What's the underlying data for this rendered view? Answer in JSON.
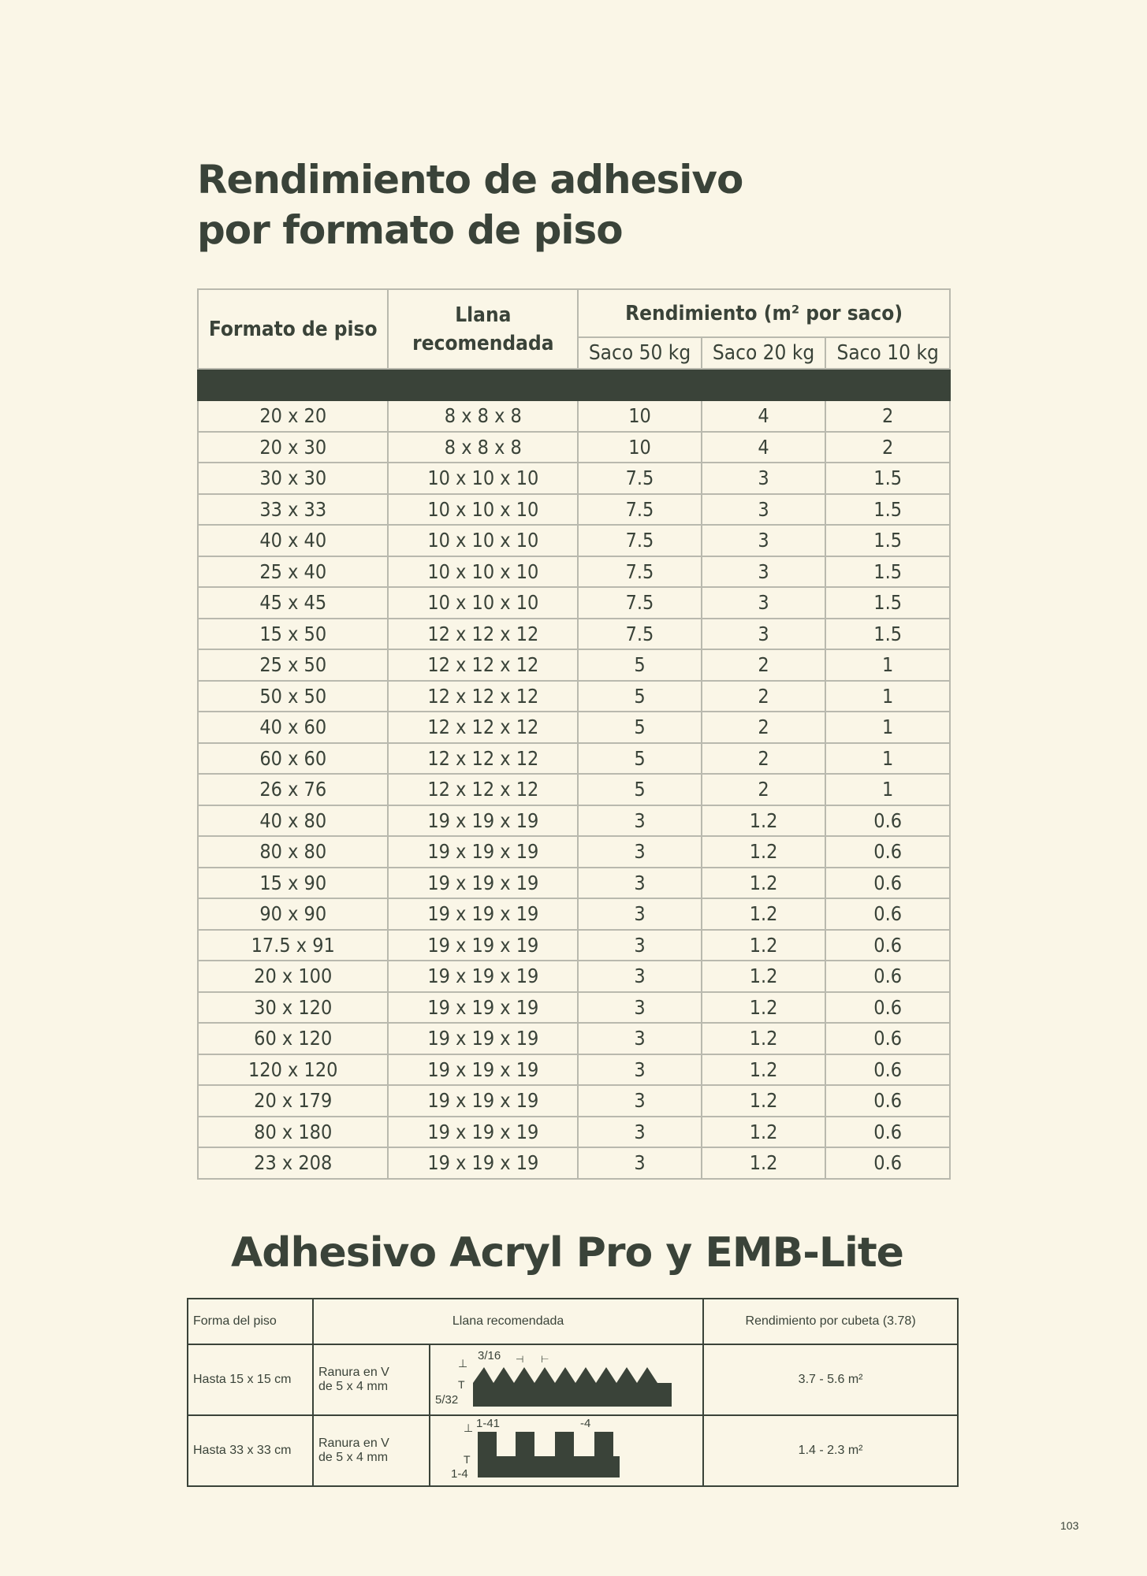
{
  "title_line1": "Rendimiento de adhesivo",
  "title_line2": "por formato de piso",
  "table1": {
    "headers": {
      "formato": "Formato de piso",
      "llana": "Llana recomendada",
      "rendimiento": "Rendimiento (m² por saco)",
      "saco50": "Saco 50 kg",
      "saco20": "Saco 20 kg",
      "saco10": "Saco 10 kg"
    },
    "rows": [
      [
        "20 x 20",
        "8 x 8 x 8",
        "10",
        "4",
        "2"
      ],
      [
        "20 x 30",
        "8 x 8 x 8",
        "10",
        "4",
        "2"
      ],
      [
        "30 x 30",
        "10 x 10 x 10",
        "7.5",
        "3",
        "1.5"
      ],
      [
        "33 x 33",
        "10 x 10 x 10",
        "7.5",
        "3",
        "1.5"
      ],
      [
        "40 x 40",
        "10 x 10 x 10",
        "7.5",
        "3",
        "1.5"
      ],
      [
        "25 x 40",
        "10 x 10 x 10",
        "7.5",
        "3",
        "1.5"
      ],
      [
        "45 x 45",
        "10 x 10 x 10",
        "7.5",
        "3",
        "1.5"
      ],
      [
        "15 x 50",
        "12 x 12 x 12",
        "7.5",
        "3",
        "1.5"
      ],
      [
        "25 x 50",
        "12 x 12 x 12",
        "5",
        "2",
        "1"
      ],
      [
        "50 x 50",
        "12 x 12 x 12",
        "5",
        "2",
        "1"
      ],
      [
        "40 x 60",
        "12 x 12 x 12",
        "5",
        "2",
        "1"
      ],
      [
        "60 x 60",
        "12 x 12 x 12",
        "5",
        "2",
        "1"
      ],
      [
        "26 x 76",
        "12 x 12 x 12",
        "5",
        "2",
        "1"
      ],
      [
        "40 x 80",
        "19 x 19 x 19",
        "3",
        "1.2",
        "0.6"
      ],
      [
        "80 x 80",
        "19 x 19 x 19",
        "3",
        "1.2",
        "0.6"
      ],
      [
        "15 x 90",
        "19 x 19 x 19",
        "3",
        "1.2",
        "0.6"
      ],
      [
        "90 x 90",
        "19 x 19 x 19",
        "3",
        "1.2",
        "0.6"
      ],
      [
        "17.5 x 91",
        "19 x 19 x 19",
        "3",
        "1.2",
        "0.6"
      ],
      [
        "20 x 100",
        "19 x 19 x 19",
        "3",
        "1.2",
        "0.6"
      ],
      [
        "30 x 120",
        "19 x 19 x 19",
        "3",
        "1.2",
        "0.6"
      ],
      [
        "60 x 120",
        "19 x 19 x 19",
        "3",
        "1.2",
        "0.6"
      ],
      [
        "120 x 120",
        "19 x 19 x 19",
        "3",
        "1.2",
        "0.6"
      ],
      [
        "20 x 179",
        "19 x 19 x 19",
        "3",
        "1.2",
        "0.6"
      ],
      [
        "80 x 180",
        "19 x 19 x 19",
        "3",
        "1.2",
        "0.6"
      ],
      [
        "23 x 208",
        "19 x 19 x 19",
        "3",
        "1.2",
        "0.6"
      ]
    ]
  },
  "section2_title": "Adhesivo Acryl Pro y EMB-Lite",
  "table2": {
    "headers": [
      "Forma del piso",
      "Llana recomendada",
      "Rendimiento por cubeta (3.78)"
    ],
    "rows": [
      {
        "forma": "Hasta 15 x 15 cm",
        "llana_line1": "Ranura en V",
        "llana_line2": "de 5 x 4 mm",
        "dim_top": "3/16",
        "dim_bottom": "5/32",
        "rendimiento": "3.7 - 5.6 m²",
        "diagram": "v-notch-trowel"
      },
      {
        "forma": "Hasta 33 x 33 cm",
        "llana_line1": "Ranura en V",
        "llana_line2": "de 5 x 4 mm",
        "dim_top": "1-41",
        "dim_extra": "-4",
        "dim_bottom": "1-4",
        "rendimiento": "1.4 - 2.3 m²",
        "diagram": "square-notch-trowel"
      }
    ]
  },
  "page_number": "103",
  "colors": {
    "background": "#faf6e7",
    "dark": "#3a4339"
  }
}
